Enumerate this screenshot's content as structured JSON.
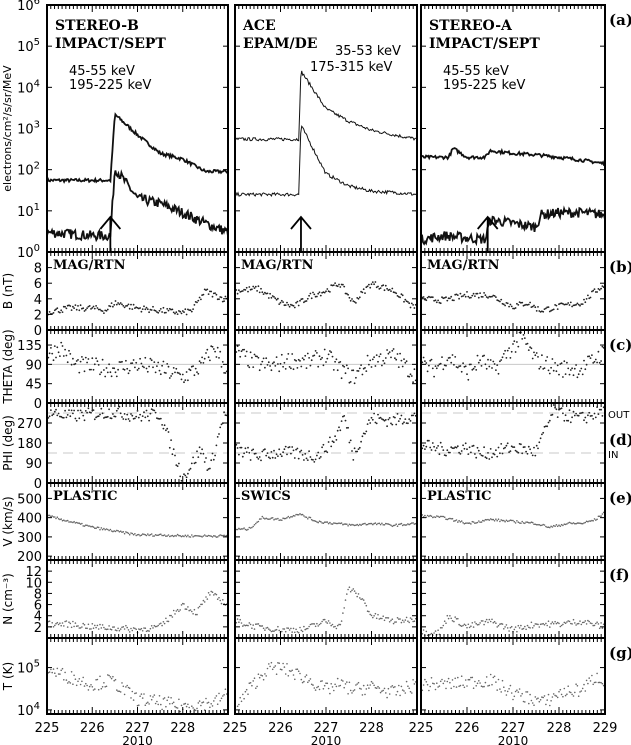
{
  "chart_data": {
    "type": "line",
    "title": "",
    "xlabel": "2010",
    "x_ticks": [
      "225",
      "226",
      "227",
      "228",
      "229"
    ],
    "xlim": [
      225,
      229
    ],
    "columns": [
      {
        "id": "stereo-b",
        "title_lines": [
          "STEREO-B",
          "IMPACT/SEPT"
        ],
        "energy_labels": [
          "45-55 keV",
          "195-225 keV"
        ],
        "arrow_doy": 226.4,
        "plasma_label": "PLASTIC"
      },
      {
        "id": "ace",
        "title_lines": [
          "ACE",
          "EPAM/DE"
        ],
        "energy_labels": [
          "35-53 keV",
          "175-315 keV"
        ],
        "arrow_doy": 226.45,
        "plasma_label": "SWICS"
      },
      {
        "id": "stereo-a",
        "title_lines": [
          "STEREO-A",
          "IMPACT/SEPT"
        ],
        "energy_labels": [
          "45-55 keV",
          "195-225 keV"
        ],
        "arrow_doy": 226.45,
        "plasma_label": "PLASTIC"
      }
    ],
    "panels": [
      {
        "id": "a",
        "tag": "(a)",
        "ylabel": "electrons/cm²/s/sr/MeV",
        "scale": "log",
        "ylim": [
          1,
          1000000
        ],
        "ticks": [
          "10^0",
          "10^1",
          "10^2",
          "10^3",
          "10^4",
          "10^5",
          "10^6"
        ],
        "sublabel": "",
        "series": [
          {
            "column": "stereo-b",
            "name": "45-55 keV",
            "x": [
              225,
              226.0,
              226.4,
              226.5,
              227.0,
              227.5,
              228.0,
              228.5,
              229
            ],
            "y": [
              55,
              55,
              55,
              2200,
              700,
              250,
              180,
              90,
              90
            ]
          },
          {
            "column": "stereo-b",
            "name": "195-225 keV",
            "x": [
              225,
              226.0,
              226.4,
              226.5,
              227.0,
              227.5,
              228.0,
              228.5,
              229
            ],
            "y": [
              3,
              2.5,
              2.5,
              110,
              20,
              15,
              9,
              5,
              3
            ]
          },
          {
            "column": "ace",
            "name": "35-53 keV",
            "x": [
              225,
              226.0,
              226.4,
              226.45,
              227.0,
              227.5,
              228.0,
              228.5,
              229
            ],
            "y": [
              550,
              550,
              550,
              25000,
              3000,
              1500,
              900,
              700,
              550
            ]
          },
          {
            "column": "ace",
            "name": "175-315 keV",
            "x": [
              225,
              226.0,
              226.4,
              226.45,
              227.0,
              227.5,
              228.0,
              228.5,
              229
            ],
            "y": [
              25,
              25,
              25,
              1200,
              80,
              40,
              30,
              28,
              25
            ]
          },
          {
            "column": "stereo-a",
            "name": "45-55 keV",
            "x": [
              225,
              225.6,
              225.7,
              226.0,
              226.4,
              226.5,
              227.0,
              227.5,
              228.0,
              228.5,
              229
            ],
            "y": [
              200,
              200,
              330,
              200,
              200,
              290,
              250,
              230,
              200,
              170,
              140
            ]
          },
          {
            "column": "stereo-a",
            "name": "195-225 keV",
            "x": [
              225,
              225.5,
              226.0,
              226.4,
              226.5,
              227.0,
              227.5,
              227.6,
              228.0,
              228.5,
              229
            ],
            "y": [
              2,
              2.5,
              2.2,
              2,
              6,
              5,
              4,
              8,
              9,
              9,
              8
            ]
          }
        ]
      },
      {
        "id": "b",
        "tag": "(b)",
        "ylabel": "B (nT)",
        "scale": "linear",
        "ylim": [
          0,
          10
        ],
        "ticks": [
          "0",
          "2",
          "4",
          "6",
          "8"
        ],
        "sublabel": "MAG/RTN",
        "series": [
          {
            "column": "stereo-b",
            "x": [
              225,
              225.5,
              226.0,
              226.3,
              226.5,
              227.0,
              227.5,
              228.0,
              228.2,
              228.5,
              228.9
            ],
            "y": [
              2.3,
              2.8,
              2.8,
              2.5,
              3.5,
              2.8,
              2.5,
              2.2,
              2.5,
              5,
              4
            ]
          },
          {
            "column": "ace",
            "x": [
              225,
              225.5,
              226.0,
              226.3,
              226.7,
              227.0,
              227.3,
              227.6,
              228.0,
              228.5,
              228.9
            ],
            "y": [
              5,
              5.3,
              3.5,
              3,
              4.5,
              5,
              6,
              3.5,
              6,
              5,
              3
            ]
          },
          {
            "column": "stereo-a",
            "x": [
              225,
              225.5,
              226.0,
              226.5,
              227.0,
              227.3,
              227.6,
              228.0,
              228.5,
              228.9
            ],
            "y": [
              4,
              3.8,
              4.5,
              4.5,
              3,
              3.5,
              2.5,
              3,
              3.5,
              5.5
            ]
          }
        ]
      },
      {
        "id": "c",
        "tag": "(c)",
        "ylabel": "THETA (deg)",
        "scale": "linear",
        "ylim": [
          0,
          170
        ],
        "ticks": [
          "0",
          "45",
          "90",
          "135"
        ],
        "sublabel": "",
        "reference_line": 90,
        "series": [
          {
            "column": "stereo-b",
            "x": [
              225,
              225.3,
              225.6,
              226.0,
              226.5,
              227.0,
              227.5,
              228.0,
              228.4,
              228.7,
              229
            ],
            "y": [
              110,
              130,
              90,
              85,
              80,
              90,
              80,
              60,
              85,
              130,
              70
            ]
          },
          {
            "column": "ace",
            "x": [
              225,
              225.4,
              225.8,
              226.2,
              226.6,
              227.0,
              227.3,
              227.6,
              228.0,
              228.5,
              229
            ],
            "y": [
              120,
              95,
              85,
              100,
              95,
              110,
              80,
              60,
              100,
              110,
              60
            ]
          },
          {
            "column": "stereo-a",
            "x": [
              225,
              225.3,
              225.6,
              226.0,
              226.3,
              226.6,
              226.9,
              227.2,
              227.5,
              228.0,
              228.5,
              229
            ],
            "y": [
              90,
              80,
              110,
              70,
              100,
              75,
              120,
              150,
              100,
              80,
              80,
              120
            ]
          }
        ]
      },
      {
        "id": "d",
        "tag": "(d)",
        "ylabel": "PHI (deg)",
        "scale": "linear",
        "ylim": [
          0,
          360
        ],
        "ticks": [
          "0",
          "90",
          "180",
          "270"
        ],
        "sublabel": "",
        "reference_lines": [
          {
            "value": 315,
            "label": "OUT"
          },
          {
            "value": 135,
            "label": "IN"
          }
        ],
        "series": [
          {
            "column": "stereo-b",
            "x": [
              225,
              225.5,
              226.0,
              226.5,
              227.0,
              227.5,
              228.0,
              228.4,
              228.6,
              228.9
            ],
            "y": [
              320,
              300,
              310,
              320,
              300,
              310,
              20,
              150,
              60,
              300
            ]
          },
          {
            "column": "ace",
            "x": [
              225,
              225.5,
              226.0,
              226.4,
              226.8,
              227.2,
              227.4,
              227.6,
              228.0,
              228.5,
              228.9
            ],
            "y": [
              150,
              120,
              140,
              130,
              120,
              200,
              300,
              130,
              290,
              280,
              300
            ]
          },
          {
            "column": "stereo-a",
            "x": [
              225,
              225.5,
              226.0,
              226.3,
              226.6,
              227.0,
              227.5,
              227.9,
              228.0,
              228.5,
              228.9
            ],
            "y": [
              170,
              150,
              160,
              130,
              140,
              160,
              140,
              330,
              310,
              290,
              320
            ]
          }
        ]
      },
      {
        "id": "e",
        "tag": "(e)",
        "ylabel": "V (km/s)",
        "scale": "linear",
        "ylim": [
          180,
          580
        ],
        "ticks": [
          "200",
          "300",
          "400",
          "500"
        ],
        "sublabel": "",
        "series": [
          {
            "column": "stereo-b",
            "x": [
              225,
              225.5,
              226.0,
              226.5,
              227.0,
              227.5,
              228.0,
              228.5,
              229
            ],
            "y": [
              410,
              380,
              350,
              330,
              310,
              310,
              305,
              305,
              305
            ]
          },
          {
            "column": "ace",
            "x": [
              225,
              225.3,
              225.6,
              226.0,
              226.4,
              226.8,
              227.2,
              227.6,
              228.0,
              228.5,
              229
            ],
            "y": [
              340,
              340,
              400,
              390,
              420,
              380,
              370,
              360,
              370,
              360,
              370
            ]
          },
          {
            "column": "stereo-a",
            "x": [
              225,
              225.5,
              226.0,
              226.5,
              227.0,
              227.5,
              227.8,
              228.2,
              228.5,
              228.8,
              229
            ],
            "y": [
              410,
              400,
              370,
              390,
              380,
              370,
              350,
              370,
              370,
              390,
              430
            ]
          }
        ]
      },
      {
        "id": "f",
        "tag": "(f)",
        "ylabel": "N (cm⁻³)",
        "scale": "linear",
        "ylim": [
          0,
          14
        ],
        "ticks": [
          "2",
          "4",
          "6",
          "8",
          "10",
          "12"
        ],
        "sublabel": "",
        "series": [
          {
            "column": "stereo-b",
            "x": [
              225,
              225.5,
              226.0,
              226.5,
              227.0,
              227.5,
              228.0,
              228.3,
              228.6,
              229
            ],
            "y": [
              2.5,
              2.5,
              2,
              1.8,
              1.5,
              2,
              6,
              4.5,
              8,
              6
            ]
          },
          {
            "column": "ace",
            "x": [
              225,
              225.5,
              226.0,
              226.5,
              227.0,
              227.3,
              227.5,
              227.8,
              228.0,
              228.5,
              229
            ],
            "y": [
              3,
              2,
              1.5,
              1.5,
              3,
              2,
              9,
              7,
              4,
              3,
              3.5
            ]
          },
          {
            "column": "stereo-a",
            "x": [
              225,
              225.4,
              225.6,
              226.0,
              226.5,
              227.0,
              227.5,
              228.0,
              228.5,
              229
            ],
            "y": [
              1,
              1,
              4,
              2,
              3,
              1.5,
              2.5,
              2.5,
              3,
              2
            ]
          }
        ]
      },
      {
        "id": "g",
        "tag": "(g)",
        "ylabel": "T (K)",
        "scale": "log",
        "ylim": [
          8000,
          500000
        ],
        "ticks": [
          "10^4",
          "10^5"
        ],
        "sublabel": "",
        "series": [
          {
            "column": "stereo-b",
            "x": [
              225,
              225.5,
              226.0,
              226.4,
              227.0,
              227.5,
              228.0,
              228.4,
              228.7,
              229
            ],
            "y": [
              90000,
              60000,
              40000,
              50000,
              18000,
              15000,
              12000,
              14000,
              15000,
              25000
            ]
          },
          {
            "column": "ace",
            "x": [
              225,
              225.3,
              225.7,
              226.0,
              226.5,
              227.0,
              227.3,
              227.6,
              228.0,
              228.5,
              229
            ],
            "y": [
              10000,
              30000,
              90000,
              100000,
              60000,
              30000,
              40000,
              30000,
              35000,
              25000,
              40000
            ]
          },
          {
            "column": "stereo-a",
            "x": [
              225,
              225.5,
              226.0,
              226.5,
              227.0,
              227.3,
              227.7,
              228.0,
              228.5,
              228.8,
              229
            ],
            "y": [
              40000,
              40000,
              45000,
              50000,
              25000,
              20000,
              15000,
              25000,
              30000,
              60000,
              50000
            ]
          }
        ]
      }
    ]
  }
}
